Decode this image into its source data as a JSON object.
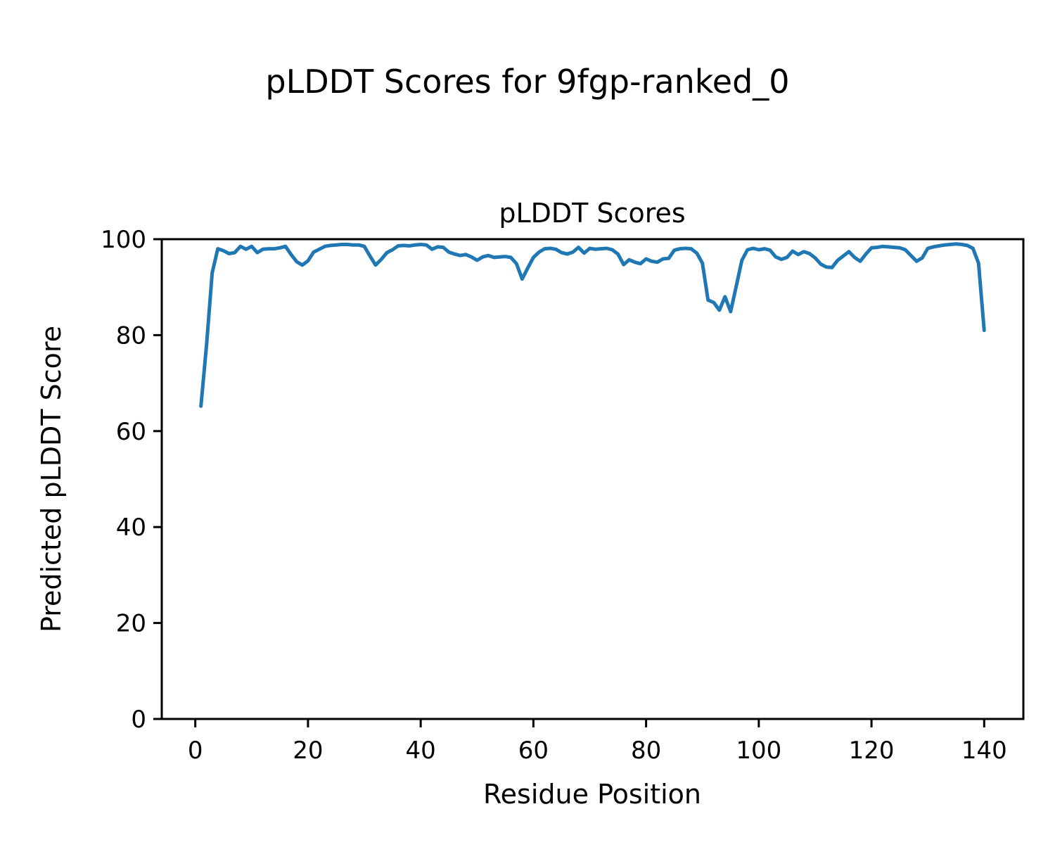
{
  "figure": {
    "background": "#ffffff",
    "text_color": "#000000"
  },
  "chart_data": {
    "type": "line",
    "title": "pLDDT Scores for 9fgp-ranked_0",
    "axes_title": "pLDDT Scores",
    "xlabel": "Residue Position",
    "ylabel": "Predicted pLDDT Score",
    "line_color": "#1f77b4",
    "line_width": 5,
    "grid": false,
    "legend": null,
    "xlim": [
      -5.95,
      146.95
    ],
    "ylim": [
      0,
      100
    ],
    "xticks": [
      0,
      20,
      40,
      60,
      80,
      100,
      120,
      140
    ],
    "yticks": [
      0,
      20,
      40,
      60,
      80,
      100
    ],
    "x_start": 1,
    "x_step": 1,
    "values": [
      65.2,
      78.0,
      93.0,
      98.0,
      97.6,
      97.0,
      97.2,
      98.5,
      97.9,
      98.5,
      97.2,
      97.9,
      98.0,
      98.0,
      98.2,
      98.5,
      96.8,
      95.3,
      94.6,
      95.5,
      97.3,
      97.9,
      98.5,
      98.7,
      98.8,
      98.9,
      98.9,
      98.8,
      98.8,
      98.5,
      96.5,
      94.6,
      95.8,
      97.2,
      97.8,
      98.6,
      98.7,
      98.6,
      98.8,
      98.9,
      98.8,
      97.9,
      98.4,
      98.3,
      97.3,
      96.9,
      96.6,
      96.8,
      96.3,
      95.6,
      96.3,
      96.6,
      96.2,
      96.3,
      96.4,
      96.2,
      94.9,
      91.7,
      94.0,
      96.2,
      97.3,
      98.0,
      98.1,
      97.9,
      97.2,
      96.9,
      97.3,
      98.3,
      97.1,
      98.1,
      97.9,
      98.0,
      98.1,
      97.8,
      96.9,
      94.7,
      95.7,
      95.2,
      94.9,
      95.9,
      95.4,
      95.2,
      95.9,
      96.0,
      97.7,
      98.0,
      98.1,
      98.0,
      97.1,
      95.0,
      87.3,
      86.8,
      85.2,
      88.0,
      84.9,
      90.2,
      95.6,
      97.8,
      98.1,
      97.8,
      98.0,
      97.7,
      96.3,
      95.8,
      96.2,
      97.5,
      96.8,
      97.4,
      97.0,
      96.1,
      94.8,
      94.2,
      94.1,
      95.6,
      96.5,
      97.4,
      96.2,
      95.4,
      96.9,
      98.2,
      98.3,
      98.5,
      98.4,
      98.3,
      98.2,
      97.8,
      96.6,
      95.4,
      96.1,
      98.1,
      98.4,
      98.6,
      98.8,
      98.9,
      99.0,
      98.9,
      98.7,
      98.1,
      95.0,
      81.0
    ]
  }
}
